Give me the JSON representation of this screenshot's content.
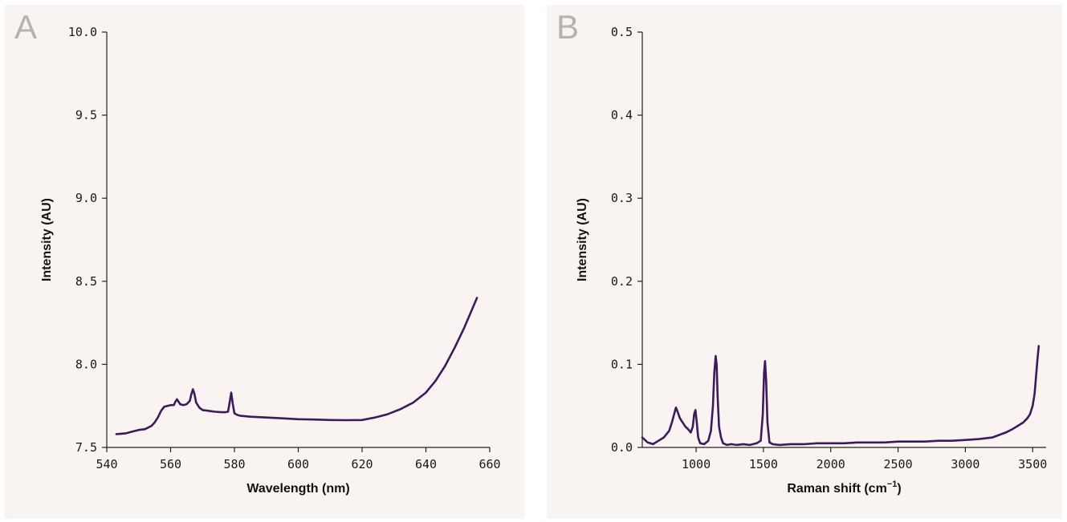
{
  "chart_data": [
    {
      "panel": "A",
      "type": "line",
      "xlabel": "Wavelength (nm)",
      "ylabel": "Intensity (AU)",
      "xlim": [
        540,
        660
      ],
      "ylim": [
        7.5,
        10.0
      ],
      "xticks": [
        540,
        560,
        580,
        600,
        620,
        640,
        660
      ],
      "xtick_labels": [
        "540",
        "560",
        "580",
        "600",
        "620",
        "640",
        "660"
      ],
      "yticks": [
        7.5,
        8.0,
        8.5,
        9.0,
        9.5,
        10.0
      ],
      "ytick_labels": [
        "7.5",
        "8.0",
        "8.5",
        "9.0",
        "9.5",
        "10.0"
      ],
      "grid": false,
      "series_color": "#3d1a5c",
      "series": [
        {
          "x": [
            543,
            546,
            548,
            550,
            552,
            554,
            555,
            556,
            557,
            558,
            559,
            560,
            561,
            561.5,
            562,
            562.5,
            563,
            564,
            565,
            566,
            566.5,
            567,
            567.5,
            568,
            569,
            570,
            572,
            574,
            576,
            577,
            578,
            578.5,
            579,
            579.5,
            580,
            581,
            582,
            585,
            590,
            595,
            600,
            605,
            610,
            615,
            620,
            624,
            628,
            632,
            636,
            640,
            643,
            646,
            649,
            652,
            654,
            656
          ],
          "y": [
            7.58,
            7.585,
            7.595,
            7.605,
            7.61,
            7.63,
            7.65,
            7.68,
            7.72,
            7.745,
            7.75,
            7.755,
            7.755,
            7.775,
            7.79,
            7.775,
            7.76,
            7.755,
            7.76,
            7.78,
            7.82,
            7.85,
            7.82,
            7.77,
            7.74,
            7.725,
            7.72,
            7.715,
            7.712,
            7.712,
            7.715,
            7.77,
            7.83,
            7.76,
            7.705,
            7.695,
            7.69,
            7.685,
            7.68,
            7.675,
            7.67,
            7.668,
            7.665,
            7.664,
            7.665,
            7.68,
            7.7,
            7.73,
            7.77,
            7.83,
            7.9,
            7.99,
            8.1,
            8.22,
            8.31,
            8.4
          ]
        }
      ]
    },
    {
      "panel": "B",
      "type": "line",
      "xlabel": "Raman shift (cm",
      "xlabel_sup": "−1",
      "xlabel_close": ")",
      "ylabel": "Intensity (AU)",
      "xlim": [
        600,
        3600
      ],
      "ylim": [
        0.0,
        0.5
      ],
      "xticks": [
        1000,
        1500,
        2000,
        2500,
        3000,
        3500
      ],
      "xtick_labels": [
        "1000",
        "1500",
        "2000",
        "2500",
        "3000",
        "3500"
      ],
      "yticks": [
        0.0,
        0.1,
        0.2,
        0.3,
        0.4,
        0.5
      ],
      "ytick_labels": [
        "0.0",
        "0.1",
        "0.2",
        "0.3",
        "0.4",
        "0.5"
      ],
      "grid": false,
      "series_color": "#3d1a5c",
      "series": [
        {
          "x": [
            600,
            640,
            680,
            720,
            760,
            800,
            820,
            840,
            850,
            860,
            880,
            900,
            920,
            940,
            960,
            975,
            985,
            995,
            1005,
            1015,
            1030,
            1060,
            1090,
            1110,
            1125,
            1135,
            1145,
            1152,
            1160,
            1170,
            1185,
            1200,
            1230,
            1260,
            1300,
            1350,
            1400,
            1450,
            1480,
            1495,
            1505,
            1512,
            1520,
            1530,
            1545,
            1570,
            1620,
            1700,
            1800,
            1900,
            2000,
            2100,
            2200,
            2300,
            2400,
            2500,
            2600,
            2700,
            2800,
            2900,
            3000,
            3100,
            3200,
            3250,
            3300,
            3350,
            3400,
            3430,
            3460,
            3480,
            3500,
            3515,
            3525,
            3535,
            3545
          ],
          "y": [
            0.012,
            0.006,
            0.004,
            0.008,
            0.012,
            0.02,
            0.03,
            0.042,
            0.048,
            0.044,
            0.035,
            0.03,
            0.025,
            0.022,
            0.018,
            0.025,
            0.04,
            0.045,
            0.03,
            0.012,
            0.005,
            0.004,
            0.008,
            0.02,
            0.05,
            0.09,
            0.11,
            0.1,
            0.06,
            0.025,
            0.012,
            0.005,
            0.003,
            0.004,
            0.003,
            0.004,
            0.003,
            0.005,
            0.008,
            0.04,
            0.09,
            0.104,
            0.08,
            0.03,
            0.006,
            0.004,
            0.003,
            0.004,
            0.004,
            0.005,
            0.005,
            0.005,
            0.006,
            0.006,
            0.006,
            0.007,
            0.007,
            0.007,
            0.008,
            0.008,
            0.009,
            0.01,
            0.012,
            0.015,
            0.018,
            0.022,
            0.027,
            0.03,
            0.035,
            0.04,
            0.05,
            0.065,
            0.085,
            0.105,
            0.122
          ]
        }
      ]
    }
  ],
  "panels": {
    "a": {
      "letter": "A"
    },
    "b": {
      "letter": "B"
    }
  }
}
